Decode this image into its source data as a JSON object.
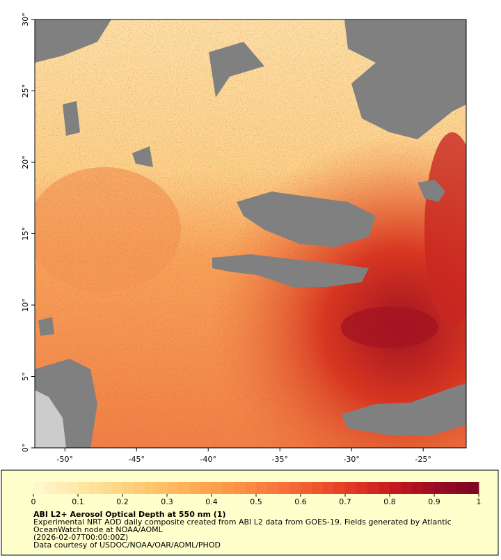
{
  "map": {
    "xlim": [
      -52.1,
      -22
    ],
    "ylim": [
      0,
      30
    ],
    "xticks": [
      {
        "value": -50,
        "label": "-50°"
      },
      {
        "value": -45,
        "label": "-45°"
      },
      {
        "value": -40,
        "label": "-40°"
      },
      {
        "value": -35,
        "label": "-35°"
      },
      {
        "value": -30,
        "label": "-30°"
      },
      {
        "value": -25,
        "label": "-25°"
      }
    ],
    "yticks": [
      {
        "value": 0,
        "label": "0°"
      },
      {
        "value": 5,
        "label": "5°"
      },
      {
        "value": 10,
        "label": "10°"
      },
      {
        "value": 15,
        "label": "15°"
      },
      {
        "value": 20,
        "label": "20°"
      },
      {
        "value": 25,
        "label": "25°"
      },
      {
        "value": 30,
        "label": "30°"
      }
    ]
  },
  "colorbar": {
    "title": "ABI L2+ Aerosol Optical Depth at 550 nm (1)",
    "range": [
      0,
      1
    ],
    "ticks": [
      0,
      0.1,
      0.2,
      0.3,
      0.4,
      0.5,
      0.6,
      0.7,
      0.8,
      0.9,
      1
    ],
    "colors": [
      "#fff9d4",
      "#fee9a8",
      "#fed888",
      "#fec36a",
      "#fdab55",
      "#fc9247",
      "#f8763c",
      "#f0562e",
      "#de3323",
      "#c2151f",
      "#980a26",
      "#7a0424"
    ]
  },
  "caption": [
    "Experimental NRT AOD daily composite created from ABI L2 data from GOES-19. Fields generated by Atlantic",
    "OceanWatch node at NOAA/AOML",
    "(2026-02-07T00:00:00Z)",
    "Data courtesy of USDOC/NOAA/OAR/AOML/PHOD"
  ]
}
